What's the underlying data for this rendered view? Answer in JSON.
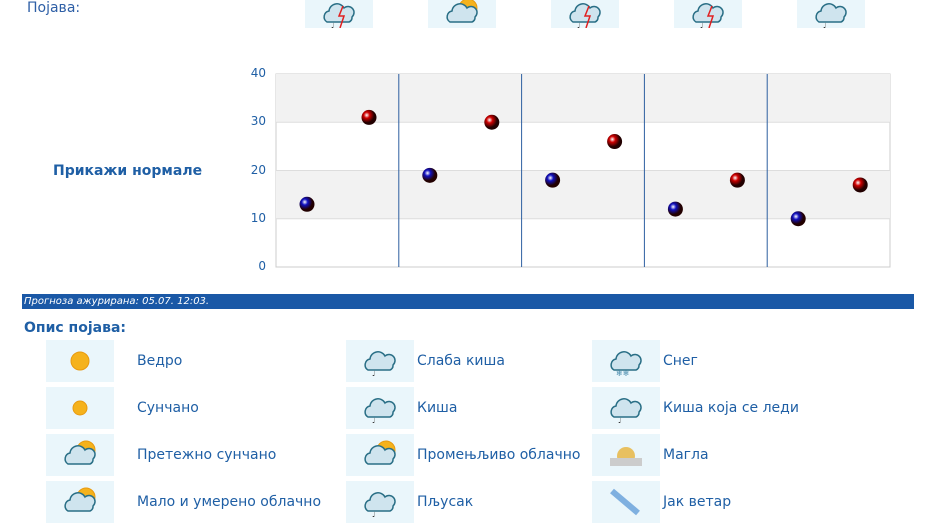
{
  "header": {
    "pojava_label": "Појава:",
    "day_icons": [
      "storm-icon",
      "partly-cloudy-icon",
      "storm-icon",
      "storm-icon",
      "light-rain-icon"
    ]
  },
  "sidebar": {
    "show_normals": "Прикажи нормале"
  },
  "chart_data": {
    "type": "scatter",
    "ylim": [
      0,
      40
    ],
    "yticks": [
      "0",
      "10",
      "20",
      "30",
      "40"
    ],
    "grid": true,
    "series": [
      {
        "color": "#1010c0",
        "values": [
          13,
          19,
          18,
          12,
          10
        ]
      },
      {
        "color": "#d00000",
        "values": [
          31,
          30,
          26,
          18,
          17
        ]
      }
    ]
  },
  "updated": "Прогноза ажурирана:  05.07. 12:03.",
  "legend": {
    "title": "Опис појава:",
    "items": [
      {
        "icon": "clear-sun-icon",
        "label": "Ведро"
      },
      {
        "icon": "light-rain-icon",
        "label": "Слаба киша"
      },
      {
        "icon": "snow-icon",
        "label": "Снег"
      },
      {
        "icon": "sunny-icon",
        "label": "Сунчано"
      },
      {
        "icon": "rain-icon",
        "label": "Киша"
      },
      {
        "icon": "freezing-rain-icon",
        "label": "Киша која се леди"
      },
      {
        "icon": "mostly-sunny-icon",
        "label": "Претежно сунчано"
      },
      {
        "icon": "variable-cloudy-icon",
        "label": "Промењљиво облачно"
      },
      {
        "icon": "fog-icon",
        "label": "Магла"
      },
      {
        "icon": "partly-cloudy-icon",
        "label": "Мало и умерено облачно"
      },
      {
        "icon": "shower-icon",
        "label": "Пљусак"
      },
      {
        "icon": "strong-wind-icon",
        "label": "Јак ветар"
      }
    ]
  }
}
